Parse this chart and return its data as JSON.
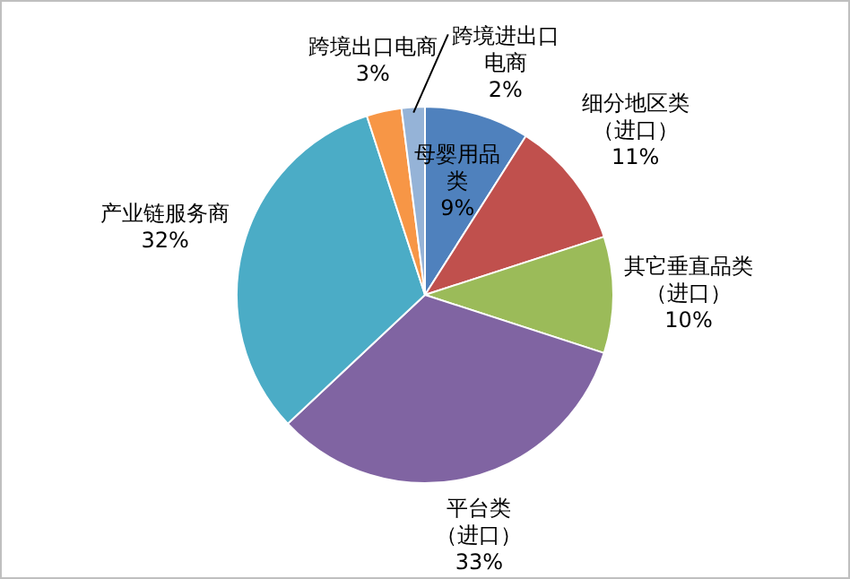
{
  "chart_data": {
    "type": "pie",
    "categories": [
      "母婴用品类",
      "细分地区类（进口）",
      "其它垂直品类（进口）",
      "平台类（进口）",
      "产业链服务商",
      "跨境出口电商",
      "跨境进出口电商"
    ],
    "values": [
      9,
      11,
      10,
      33,
      32,
      3,
      2
    ],
    "value_labels": [
      "9%",
      "11%",
      "10%",
      "33%",
      "32%",
      "3%",
      "2%"
    ],
    "colors": [
      "#4f81bd",
      "#c0504d",
      "#9bbb59",
      "#8064a2",
      "#4bacc6",
      "#f79646",
      "#95b3d7"
    ],
    "legend": false
  }
}
